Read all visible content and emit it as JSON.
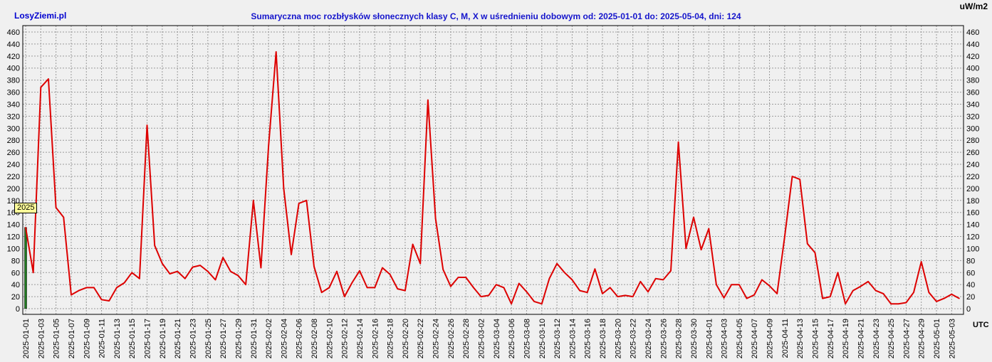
{
  "header": {
    "brand": "LosyZiemi.pl",
    "title": "Sumaryczna moc rozbłysków słonecznych klasy C, M, X w uśrednieniu dobowym od: 2025-01-01 do: 2025-05-04, dni: 124",
    "unit": "uW/m2",
    "x_axis_label": "UTC"
  },
  "chart_data": {
    "type": "line",
    "title": "Sumaryczna moc rozbłysków słonecznych klasy C, M, X w uśrednieniu dobowym od: 2025-01-01 do: 2025-05-04, dni: 124",
    "ylabel": "uW/m2",
    "xlabel": "UTC",
    "x_start": "2025-01-01",
    "x_end": "2025-05-04",
    "ylim": [
      0,
      460
    ],
    "y_ticks": [
      0,
      20,
      40,
      60,
      80,
      100,
      120,
      140,
      160,
      180,
      200,
      220,
      240,
      260,
      280,
      300,
      320,
      340,
      360,
      380,
      400,
      420,
      440,
      460
    ],
    "x_tick_labels": [
      "2025-01-01",
      "2025-01-03",
      "2025-01-05",
      "2025-01-07",
      "2025-01-09",
      "2025-01-11",
      "2025-01-13",
      "2025-01-15",
      "2025-01-17",
      "2025-01-19",
      "2025-01-21",
      "2025-01-23",
      "2025-01-25",
      "2025-01-27",
      "2025-01-29",
      "2025-01-31",
      "2025-02-02",
      "2025-02-04",
      "2025-02-06",
      "2025-02-08",
      "2025-02-10",
      "2025-02-12",
      "2025-02-14",
      "2025-02-16",
      "2025-02-18",
      "2025-02-20",
      "2025-02-22",
      "2025-02-24",
      "2025-02-26",
      "2025-02-28",
      "2025-03-02",
      "2025-03-04",
      "2025-03-06",
      "2025-03-08",
      "2025-03-10",
      "2025-03-12",
      "2025-03-14",
      "2025-03-16",
      "2025-03-18",
      "2025-03-20",
      "2025-03-22",
      "2025-03-24",
      "2025-03-26",
      "2025-03-28",
      "2025-03-30",
      "2025-04-01",
      "2025-04-03",
      "2025-04-05",
      "2025-04-07",
      "2025-04-09",
      "2025-04-11",
      "2025-04-13",
      "2025-04-15",
      "2025-04-17",
      "2025-04-19",
      "2025-04-21",
      "2025-04-23",
      "2025-04-25",
      "2025-04-27",
      "2025-04-29",
      "2025-05-01",
      "2025-05-03"
    ],
    "grid": true,
    "legend": {
      "label": "2025",
      "placement": "left"
    },
    "series": [
      {
        "name": "2025",
        "color": "#dd0000",
        "values": [
          135,
          60,
          368,
          382,
          168,
          152,
          23,
          30,
          35,
          35,
          15,
          13,
          35,
          43,
          60,
          50,
          305,
          105,
          75,
          58,
          62,
          50,
          69,
          72,
          62,
          48,
          85,
          62,
          55,
          40,
          180,
          68,
          270,
          427,
          200,
          90,
          175,
          180,
          70,
          27,
          35,
          62,
          20,
          43,
          63,
          35,
          35,
          68,
          57,
          33,
          30,
          107,
          75,
          347,
          150,
          65,
          37,
          52,
          52,
          35,
          20,
          22,
          40,
          35,
          8,
          42,
          28,
          12,
          8,
          50,
          75,
          60,
          48,
          30,
          27,
          66,
          25,
          35,
          20,
          22,
          20,
          45,
          28,
          50,
          48,
          63,
          277,
          100,
          152,
          98,
          133,
          40,
          18,
          40,
          40,
          17,
          23,
          48,
          38,
          25,
          120,
          220,
          215,
          108,
          93,
          17,
          20,
          60,
          8,
          30,
          37,
          45,
          30,
          25,
          8,
          8,
          10,
          27,
          78,
          27,
          12,
          17,
          24,
          17
        ]
      }
    ],
    "highlight_bar": {
      "x": "2025-01-01",
      "value": 135,
      "color": "#1f7a1f"
    }
  }
}
